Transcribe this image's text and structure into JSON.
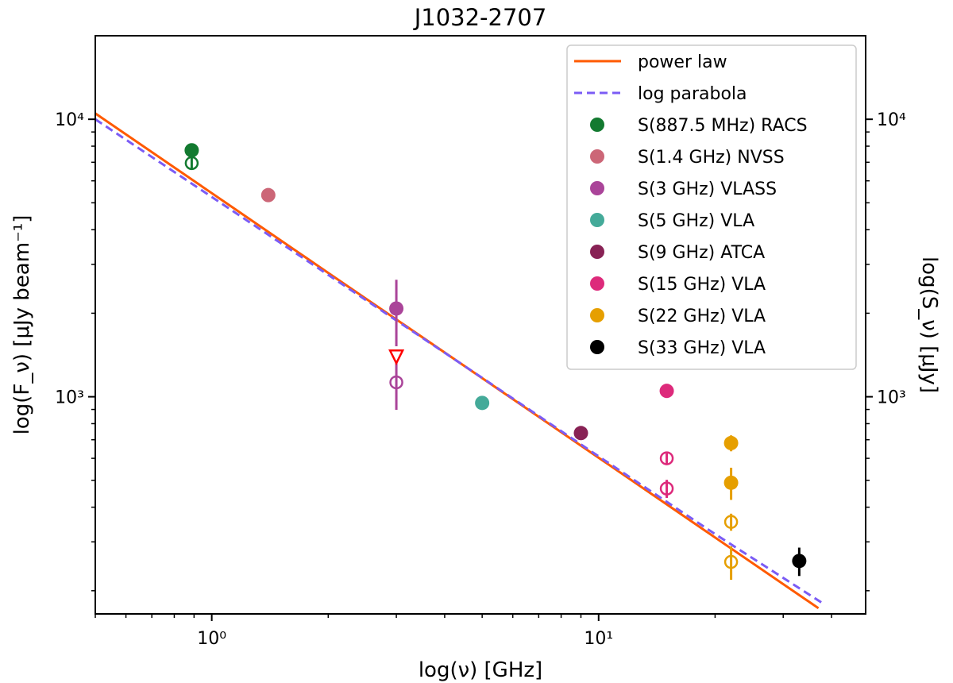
{
  "chart_data": {
    "type": "scatter",
    "title": "J1032-2707",
    "xlabel": "log(ν) [GHz]",
    "ylabel": "log(F_ν) [μJy beam⁻¹]",
    "ylabel_right": "log(S_ν) [μJy]",
    "xscale": "log",
    "yscale": "log",
    "xlim": [
      0.5,
      49
    ],
    "ylim": [
      165,
      20000
    ],
    "x_ticks": [
      {
        "value": 1,
        "label": "10⁰"
      },
      {
        "value": 10,
        "label": "10¹"
      }
    ],
    "y_ticks": [
      {
        "value": 1000,
        "label": "10³"
      },
      {
        "value": 10000,
        "label": "10⁴"
      }
    ],
    "grid": false,
    "legend_position": "top-right",
    "lines": [
      {
        "name": "power law",
        "color": "#ff5a00",
        "style": "solid",
        "x": [
          0.5,
          1,
          2,
          5,
          10,
          20,
          37
        ],
        "y": [
          10500,
          5418,
          2795,
          1167,
          603,
          311,
          173
        ]
      },
      {
        "name": "log parabola",
        "color": "#7b5cf5",
        "style": "dashed",
        "x": [
          0.5,
          1,
          2,
          5,
          10,
          20,
          38
        ],
        "y": [
          10000,
          5250,
          2750,
          1170,
          610,
          320,
          180
        ]
      }
    ],
    "series": [
      {
        "name": "S(887.5 MHz) RACS",
        "color": "#137a30",
        "points": [
          {
            "x": 0.8875,
            "y": 7730,
            "err": 100,
            "marker": "filled"
          },
          {
            "x": 0.8875,
            "y": 6950,
            "err": 350,
            "marker": "open"
          }
        ]
      },
      {
        "name": "S(1.4 GHz) NVSS",
        "color": "#cc6677",
        "points": [
          {
            "x": 1.4,
            "y": 5330,
            "err": 0,
            "marker": "filled"
          }
        ]
      },
      {
        "name": "S(3 GHz) VLASS",
        "color": "#aa4499",
        "points": [
          {
            "x": 3,
            "y": 2080,
            "err": 560,
            "marker": "filled"
          },
          {
            "x": 3,
            "y": 1127,
            "err": 230,
            "marker": "open"
          },
          {
            "x": 3,
            "y": 1384,
            "err": 0,
            "marker": "upper-limit",
            "marker_color": "#ff0000"
          }
        ]
      },
      {
        "name": "S(5 GHz) VLA",
        "color": "#44aa99",
        "points": [
          {
            "x": 5,
            "y": 950,
            "err": 0,
            "marker": "filled"
          }
        ]
      },
      {
        "name": "S(9 GHz) ATCA",
        "color": "#882255",
        "points": [
          {
            "x": 9,
            "y": 740,
            "err": 25,
            "marker": "filled"
          }
        ]
      },
      {
        "name": "S(15 GHz) VLA",
        "color": "#dd2a7b",
        "points": [
          {
            "x": 15,
            "y": 1050,
            "err": 60,
            "marker": "filled"
          },
          {
            "x": 15,
            "y": 600,
            "err": 25,
            "marker": "open"
          },
          {
            "x": 15,
            "y": 467,
            "err": 35,
            "marker": "open"
          }
        ]
      },
      {
        "name": "S(22 GHz) VLA",
        "color": "#e69f00",
        "points": [
          {
            "x": 22,
            "y": 681,
            "err": 45,
            "marker": "filled"
          },
          {
            "x": 22,
            "y": 490,
            "err": 65,
            "marker": "filled"
          },
          {
            "x": 22,
            "y": 354,
            "err": 25,
            "marker": "open"
          },
          {
            "x": 22,
            "y": 254,
            "err": 35,
            "marker": "open"
          }
        ]
      },
      {
        "name": "S(33 GHz) VLA",
        "color": "#000000",
        "points": [
          {
            "x": 33,
            "y": 256,
            "err": 30,
            "marker": "filled"
          }
        ]
      }
    ]
  }
}
